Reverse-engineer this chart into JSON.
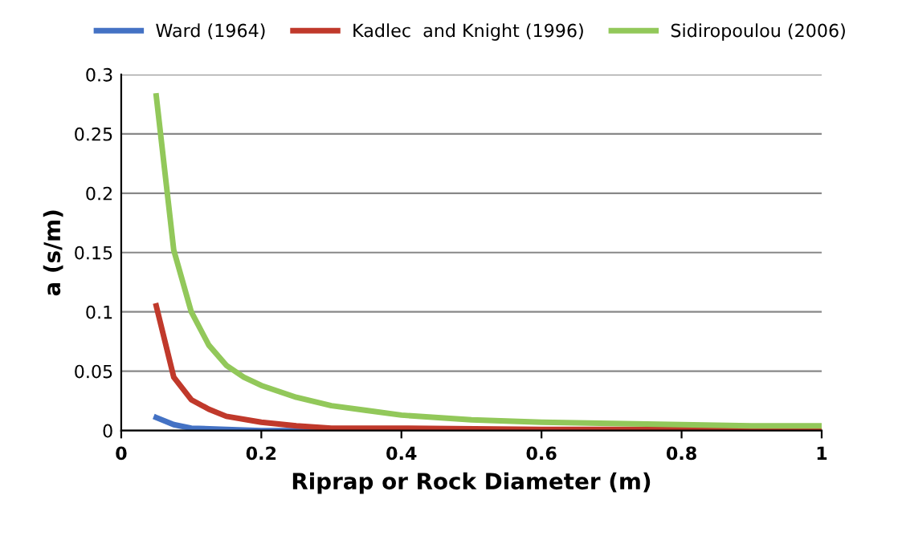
{
  "chart_data": {
    "type": "line",
    "xlabel": "Riprap or Rock Diameter (m)",
    "ylabel": "a (s/m)",
    "xlim": [
      0,
      1
    ],
    "xticks": [
      0,
      0.2,
      0.4,
      0.6,
      0.8,
      1
    ],
    "ylim": [
      0,
      0.3
    ],
    "yticks": [
      0,
      0.05,
      0.1,
      0.15,
      0.2,
      0.25,
      0.3
    ],
    "grid": "y",
    "legend": "top",
    "marker": "none",
    "line_style": "solid",
    "series": [
      {
        "name": "Ward (1964)",
        "color": "#4472c4",
        "x": [
          0.05,
          0.075,
          0.1,
          0.15,
          0.2,
          0.3
        ],
        "values": [
          0.011,
          0.005,
          0.002,
          0.001,
          0.0,
          0.0
        ]
      },
      {
        "name": "Kadlec  and Knight (1996)",
        "color": "#c0392b",
        "x": [
          0.05,
          0.075,
          0.1,
          0.125,
          0.15,
          0.2,
          0.25,
          0.3,
          0.4,
          0.6,
          0.8,
          1.0
        ],
        "values": [
          0.105,
          0.045,
          0.026,
          0.018,
          0.012,
          0.007,
          0.004,
          0.002,
          0.002,
          0.001,
          0.001,
          0.001
        ]
      },
      {
        "name": "Sidiropoulou (2006)",
        "color": "#92c85a",
        "x": [
          0.05,
          0.075,
          0.1,
          0.125,
          0.15,
          0.175,
          0.2,
          0.25,
          0.3,
          0.35,
          0.4,
          0.5,
          0.6,
          0.7,
          0.8,
          0.9,
          1.0
        ],
        "values": [
          0.282,
          0.152,
          0.1,
          0.072,
          0.055,
          0.045,
          0.038,
          0.028,
          0.021,
          0.017,
          0.013,
          0.009,
          0.007,
          0.006,
          0.005,
          0.004,
          0.004
        ]
      }
    ]
  }
}
